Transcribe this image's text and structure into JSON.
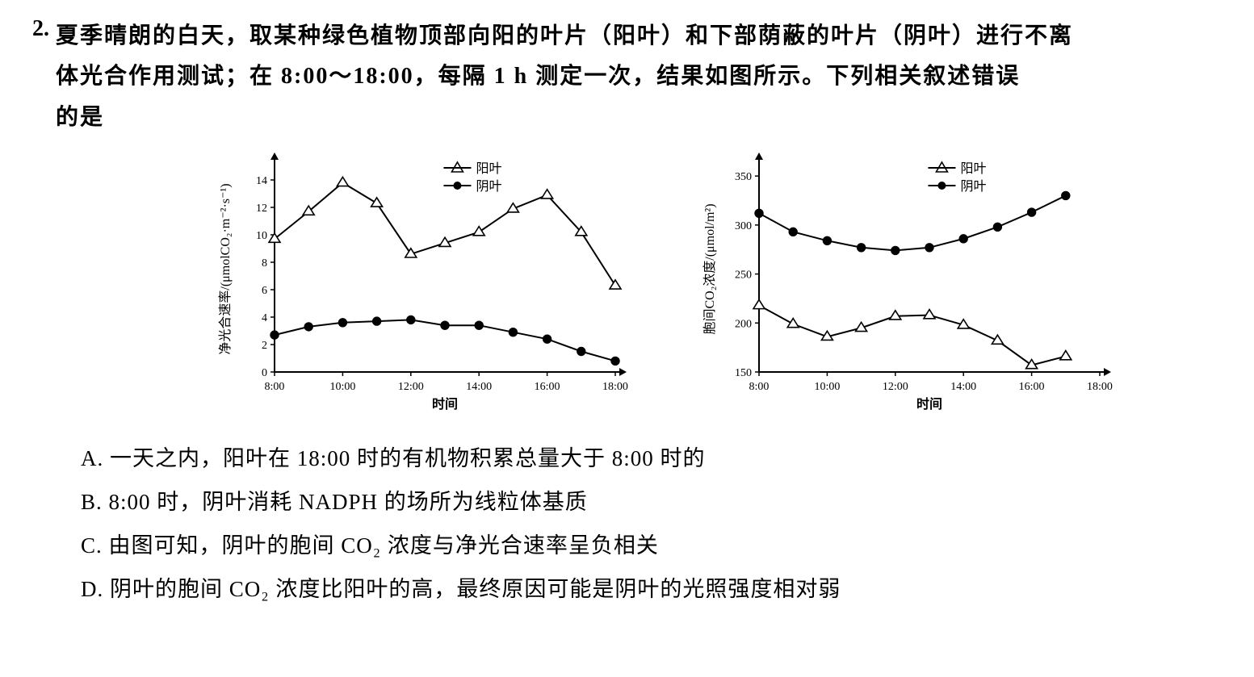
{
  "question": {
    "number": "2.",
    "text_line1": "夏季晴朗的白天，取某种绿色植物顶部向阳的叶片（阳叶）和下部荫蔽的叶片（阴叶）进行不离",
    "text_line2": "体光合作用测试；在 8:00～18:00，每隔 1 h 测定一次，结果如图所示。下列相关叙述错误",
    "text_line3": "的是"
  },
  "chart1": {
    "type": "line",
    "ylabel": "净光合速率/(μmolCO₂·m⁻²·s⁻¹)",
    "xlabel": "时间",
    "xticks": [
      "8:00",
      "10:00",
      "12:00",
      "14:00",
      "16:00",
      "18:00"
    ],
    "yticks": [
      0,
      2,
      4,
      6,
      8,
      10,
      12,
      14
    ],
    "ylim": [
      0,
      15
    ],
    "x_values": [
      8,
      9,
      10,
      11,
      12,
      13,
      14,
      15,
      16,
      17,
      18
    ],
    "series": {
      "yang": {
        "label": "阳叶",
        "marker": "triangle",
        "color": "#000000",
        "fill": "#ffffff",
        "values": [
          9.7,
          11.7,
          13.8,
          12.3,
          8.6,
          9.4,
          10.2,
          11.9,
          12.9,
          10.2,
          6.3
        ]
      },
      "yin": {
        "label": "阴叶",
        "marker": "circle",
        "color": "#000000",
        "fill": "#000000",
        "values": [
          2.7,
          3.3,
          3.6,
          3.7,
          3.8,
          3.4,
          3.4,
          2.9,
          2.4,
          1.5,
          0.8
        ]
      }
    },
    "line_width": 2,
    "marker_size": 6,
    "background_color": "#ffffff",
    "axis_color": "#000000",
    "font_size_axis": 14,
    "font_size_label": 16
  },
  "chart2": {
    "type": "line",
    "ylabel": "胞间CO₂浓度/(μmol/m²)",
    "xlabel": "时间",
    "xticks": [
      "8:00",
      "10:00",
      "12:00",
      "14:00",
      "16:00",
      "18:00"
    ],
    "yticks": [
      150,
      200,
      250,
      300,
      350
    ],
    "ylim": [
      150,
      360
    ],
    "x_values": [
      8,
      9,
      10,
      11,
      12,
      13,
      14,
      15,
      16,
      17
    ],
    "series": {
      "yang": {
        "label": "阳叶",
        "marker": "triangle",
        "color": "#000000",
        "fill": "#ffffff",
        "values": [
          218,
          199,
          186,
          195,
          207,
          208,
          198,
          182,
          157,
          166
        ]
      },
      "yin": {
        "label": "阴叶",
        "marker": "circle",
        "color": "#000000",
        "fill": "#000000",
        "values": [
          312,
          293,
          284,
          277,
          274,
          277,
          286,
          298,
          313,
          330
        ]
      }
    },
    "line_width": 2,
    "marker_size": 6,
    "background_color": "#ffffff",
    "axis_color": "#000000",
    "font_size_axis": 14,
    "font_size_label": 16
  },
  "options": {
    "A": "A. 一天之内，阳叶在 18:00 时的有机物积累总量大于 8:00 时的",
    "B": "B. 8:00 时，阴叶消耗 NADPH 的场所为线粒体基质",
    "C": "C. 由图可知，阴叶的胞间 CO₂ 浓度与净光合速率呈负相关",
    "D": "D. 阴叶的胞间 CO₂ 浓度比阳叶的高，最终原因可能是阴叶的光照强度相对弱"
  },
  "legend": {
    "yang": "阳叶",
    "yin": "阴叶"
  }
}
